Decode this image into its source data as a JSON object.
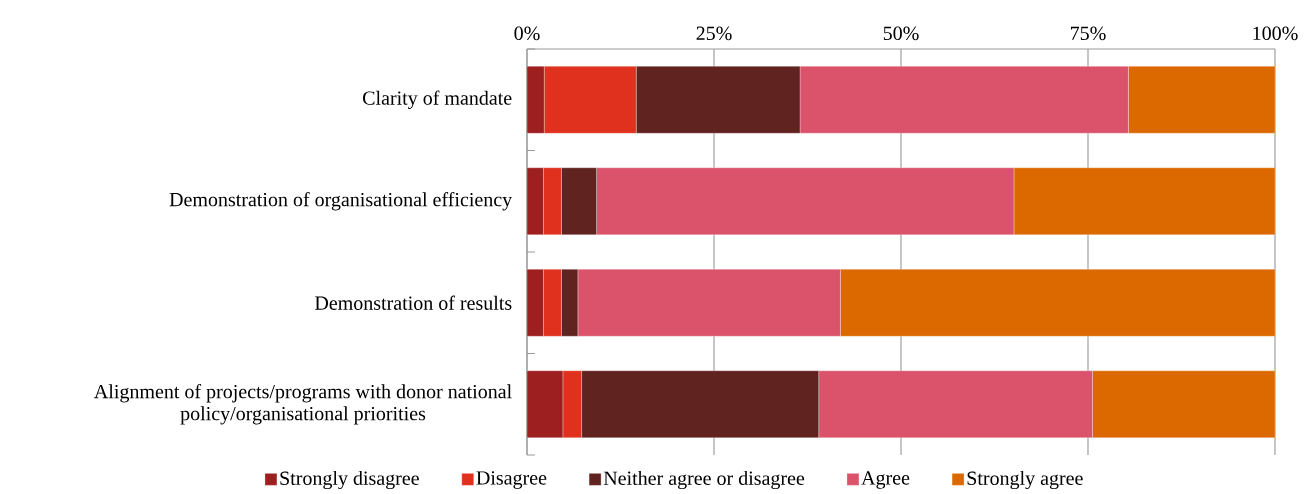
{
  "chart_data": {
    "type": "bar",
    "orientation": "horizontal",
    "stacked": true,
    "categories": [
      "Clarity of mandate",
      "Demonstration of organisational efficiency",
      "Demonstration of results",
      "Alignment of projects/programs with donor national policy/organisational priorities"
    ],
    "series": [
      {
        "name": "Strongly disagree",
        "color": "#9e1f20",
        "values": [
          2.3,
          2.2,
          2.2,
          4.8
        ]
      },
      {
        "name": "Disagree",
        "color": "#e0301e",
        "values": [
          12.3,
          2.4,
          2.4,
          2.5
        ]
      },
      {
        "name": "Neither agree or disagree",
        "color": "#602320",
        "values": [
          21.9,
          4.7,
          2.2,
          31.7
        ]
      },
      {
        "name": "Agree",
        "color": "#db536a",
        "values": [
          43.9,
          55.8,
          35.1,
          36.6
        ]
      },
      {
        "name": "Strongly agree",
        "color": "#dc6900",
        "values": [
          19.6,
          34.9,
          58.1,
          24.4
        ]
      }
    ],
    "xlim": [
      0,
      100
    ],
    "xticks": [
      {
        "value": 0,
        "label": "0%"
      },
      {
        "value": 25,
        "label": "25%"
      },
      {
        "value": 50,
        "label": "50%"
      },
      {
        "value": 75,
        "label": "75%"
      },
      {
        "value": 100,
        "label": "100%"
      }
    ],
    "grid": "x",
    "legend": "bottom"
  }
}
